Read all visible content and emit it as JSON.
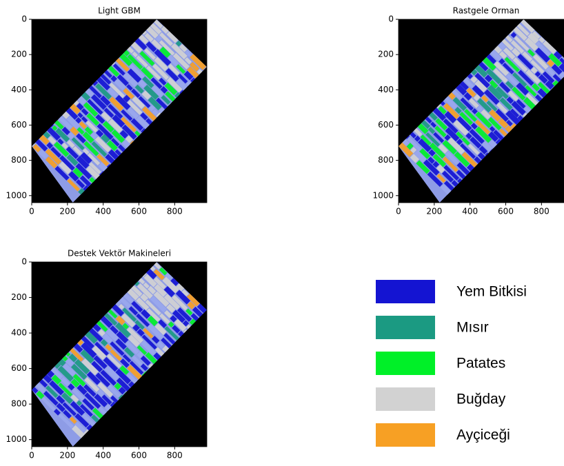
{
  "chart_data": [
    {
      "type": "image",
      "title": "Light GBM",
      "xlim": [
        0,
        980
      ],
      "ylim": [
        1040,
        0
      ],
      "xticks": [
        0,
        200,
        400,
        600,
        800
      ],
      "yticks": [
        0,
        200,
        400,
        600,
        800,
        1000
      ]
    },
    {
      "type": "image",
      "title": "Rastgele Orman",
      "xlim": [
        0,
        980
      ],
      "ylim": [
        1040,
        0
      ],
      "xticks": [
        0,
        200,
        400,
        600,
        800
      ],
      "yticks": [
        0,
        200,
        400,
        600,
        800,
        1000
      ]
    },
    {
      "type": "image",
      "title": "Destek Vektör Makineleri",
      "xlim": [
        0,
        980
      ],
      "ylim": [
        1040,
        0
      ],
      "xticks": [
        0,
        200,
        400,
        600,
        800
      ],
      "yticks": [
        0,
        200,
        400,
        600,
        800,
        1000
      ]
    }
  ],
  "legend": {
    "items": [
      {
        "name": "Yem Bitkisi",
        "color": "#1414d2"
      },
      {
        "name": "Mısır",
        "color": "#1b9a82"
      },
      {
        "name": "Patates",
        "color": "#00f028"
      },
      {
        "name": "Buğday",
        "color": "#d2d2d2"
      },
      {
        "name": "Ayçiceği",
        "color": "#f7a024"
      }
    ]
  }
}
